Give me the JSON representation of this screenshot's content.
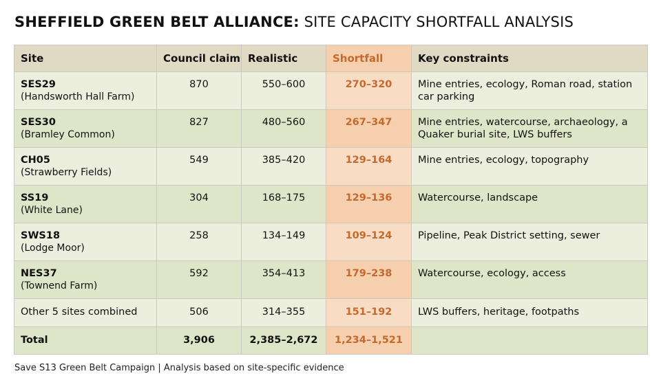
{
  "header": {
    "title_bold": "SHEFFIELD GREEN BELT ALLIANCE:",
    "title_rest": "SITE CAPACITY SHORTFALL ANALYSIS"
  },
  "table": {
    "columns": [
      "Site",
      "Council claims",
      "Realistic",
      "Shortfall",
      "Key constraints"
    ],
    "rows": [
      {
        "code": "SES29",
        "name": "(Handsworth Hall Farm)",
        "council": "870",
        "realistic": "550–600",
        "shortfall": "270–320",
        "constraints": "Mine entries, ecology, Roman road, station car parking"
      },
      {
        "code": "SES30",
        "name": "(Bramley Common)",
        "council": "827",
        "realistic": "480–560",
        "shortfall": "267–347",
        "constraints": "Mine entries, watercourse, archaeology, a Quaker burial site, LWS buffers"
      },
      {
        "code": "CH05",
        "name": "(Strawberry Fields)",
        "council": "549",
        "realistic": "385–420",
        "shortfall": "129–164",
        "constraints": "Mine entries, ecology, topography"
      },
      {
        "code": "SS19",
        "name": "(White Lane)",
        "council": "304",
        "realistic": "168–175",
        "shortfall": "129–136",
        "constraints": "Watercourse, landscape"
      },
      {
        "code": "SWS18",
        "name": "(Lodge Moor)",
        "council": "258",
        "realistic": "134–149",
        "shortfall": "109–124",
        "constraints": "Pipeline, Peak District setting, sewer"
      },
      {
        "code": "NES37",
        "name": "(Townend Farm)",
        "council": "592",
        "realistic": "354–413",
        "shortfall": "179–238",
        "constraints": "Watercourse, ecology, access"
      }
    ],
    "other": {
      "label": "Other 5 sites combined",
      "council": "506",
      "realistic": "314–355",
      "shortfall": "151–192",
      "constraints": "LWS buffers, heritage, footpaths"
    },
    "total": {
      "label": "Total",
      "council": "3,906",
      "realistic": "2,385–2,672",
      "shortfall": "1,234–1,521",
      "constraints": ""
    }
  },
  "footer": {
    "text": "Save S13 Green Belt Campaign  |  Analysis based on site-specific evidence"
  },
  "colors": {
    "header_bg": "#e0d9c4",
    "row_light": "#ecefdd",
    "row_dark": "#dfe5c8",
    "shortfall_text": "#c5692e",
    "shortfall_light": "#f8dcc3",
    "shortfall_dark": "#f5cfae"
  }
}
